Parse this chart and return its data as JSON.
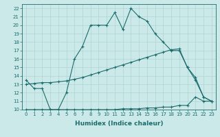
{
  "xlabel": "Humidex (Indice chaleur)",
  "bg_color": "#cce9e9",
  "line_color": "#1a6b6b",
  "grid_color": "#add4d4",
  "xlim": [
    -0.5,
    23.5
  ],
  "ylim": [
    10,
    22.5
  ],
  "xticks": [
    0,
    1,
    2,
    3,
    4,
    5,
    6,
    7,
    8,
    9,
    10,
    11,
    12,
    13,
    14,
    15,
    16,
    17,
    18,
    19,
    20,
    21,
    22,
    23
  ],
  "yticks": [
    10,
    11,
    12,
    13,
    14,
    15,
    16,
    17,
    18,
    19,
    20,
    21,
    22
  ],
  "line1_x": [
    0,
    1,
    2,
    3,
    4,
    5,
    6,
    7,
    8,
    9,
    10,
    11,
    12,
    13,
    14,
    15,
    16,
    17,
    18,
    19,
    20,
    21,
    22,
    23
  ],
  "line1_y": [
    13.5,
    12.5,
    12.5,
    10.0,
    10.0,
    12.0,
    16.0,
    17.5,
    20.0,
    20.0,
    20.0,
    21.5,
    19.5,
    22.0,
    21.0,
    20.5,
    19.0,
    18.0,
    17.0,
    17.0,
    15.0,
    13.5,
    11.5,
    11.0
  ],
  "line2_x": [
    0,
    1,
    2,
    3,
    4,
    5,
    6,
    7,
    8,
    9,
    10,
    11,
    12,
    13,
    14,
    15,
    16,
    17,
    18,
    19,
    20,
    21,
    22,
    23
  ],
  "line2_y": [
    13.0,
    13.1,
    13.2,
    13.2,
    13.3,
    13.4,
    13.6,
    13.8,
    14.1,
    14.4,
    14.7,
    15.0,
    15.3,
    15.6,
    15.9,
    16.2,
    16.5,
    16.8,
    17.1,
    17.2,
    15.0,
    13.8,
    11.5,
    11.0
  ],
  "line3_x": [
    0,
    1,
    2,
    3,
    4,
    5,
    6,
    7,
    8,
    9,
    10,
    11,
    12,
    13,
    14,
    15,
    16,
    17,
    18,
    19,
    20,
    21,
    22,
    23
  ],
  "line3_y": [
    10.0,
    10.0,
    10.0,
    10.0,
    10.0,
    10.0,
    10.0,
    10.0,
    10.0,
    10.0,
    10.0,
    10.0,
    10.1,
    10.1,
    10.1,
    10.2,
    10.2,
    10.3,
    10.3,
    10.5,
    10.5,
    11.5,
    11.0,
    11.0
  ]
}
